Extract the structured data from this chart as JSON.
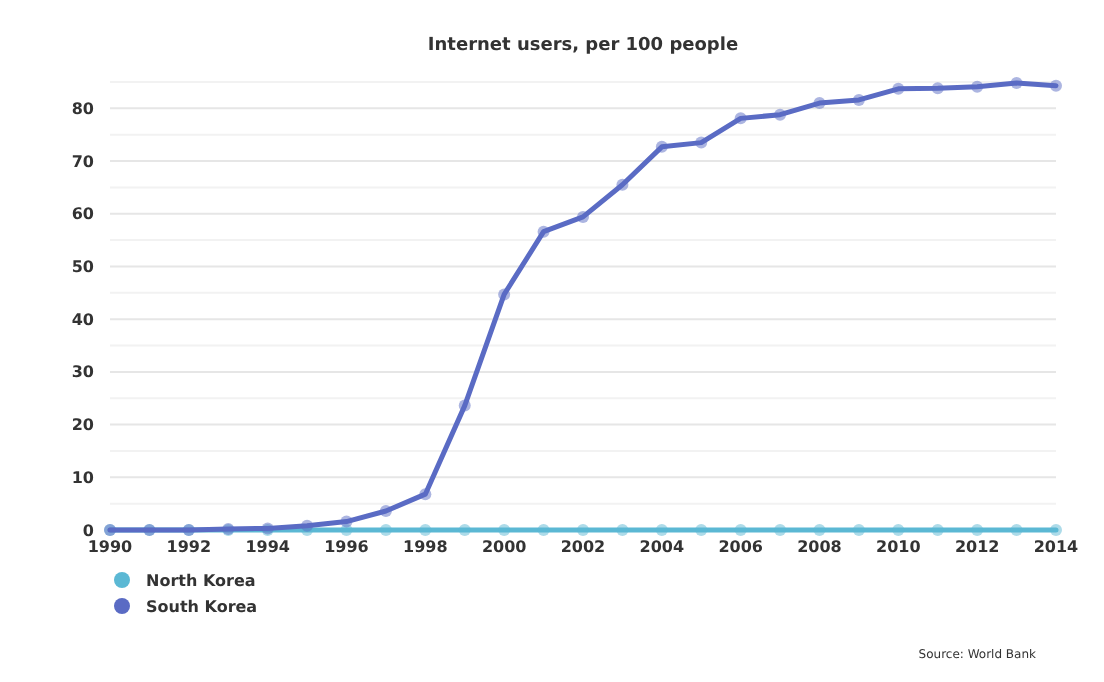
{
  "chart_data": {
    "type": "line",
    "title": "Internet users, per 100 people",
    "x": [
      1990,
      1991,
      1992,
      1993,
      1994,
      1995,
      1996,
      1997,
      1998,
      1999,
      2000,
      2001,
      2002,
      2003,
      2004,
      2005,
      2006,
      2007,
      2008,
      2009,
      2010,
      2011,
      2012,
      2013,
      2014
    ],
    "series": [
      {
        "name": "North Korea",
        "color": "#5bb8d4",
        "values": [
          0,
          0,
          0,
          0,
          0,
          0,
          0,
          0,
          0,
          0,
          0,
          0,
          0,
          0,
          0,
          0,
          0,
          0,
          0,
          0,
          0,
          0,
          0,
          0,
          0
        ]
      },
      {
        "name": "South Korea",
        "color": "#5a6bc4",
        "values": [
          0,
          0,
          0,
          0.2,
          0.3,
          0.8,
          1.6,
          3.6,
          6.8,
          23.6,
          44.7,
          56.6,
          59.4,
          65.5,
          72.7,
          73.5,
          78.1,
          78.8,
          81,
          81.6,
          83.7,
          83.8,
          84.1,
          84.8,
          84.3
        ]
      }
    ],
    "xlim": [
      1990,
      2014
    ],
    "xticks": [
      1990,
      1992,
      1994,
      1996,
      1998,
      2000,
      2002,
      2004,
      2006,
      2008,
      2010,
      2012,
      2014
    ],
    "ylim": [
      0,
      85
    ],
    "yticks": [
      0,
      {
        "value": 5,
        "label": null
      },
      10,
      {
        "value": 15,
        "label": null
      },
      20,
      {
        "value": 25,
        "label": null
      },
      30,
      {
        "value": 35,
        "label": null
      },
      40,
      {
        "value": 45,
        "label": null
      },
      50,
      {
        "value": 55,
        "label": null
      },
      60,
      {
        "value": 65,
        "label": null
      },
      70,
      {
        "value": 75,
        "label": null
      },
      80,
      {
        "value": 85,
        "label": null
      }
    ],
    "grid": "y",
    "legend": "bottom left",
    "marker": "circle",
    "line_style": "solid",
    "annotations": [
      "Source: World Bank"
    ]
  }
}
